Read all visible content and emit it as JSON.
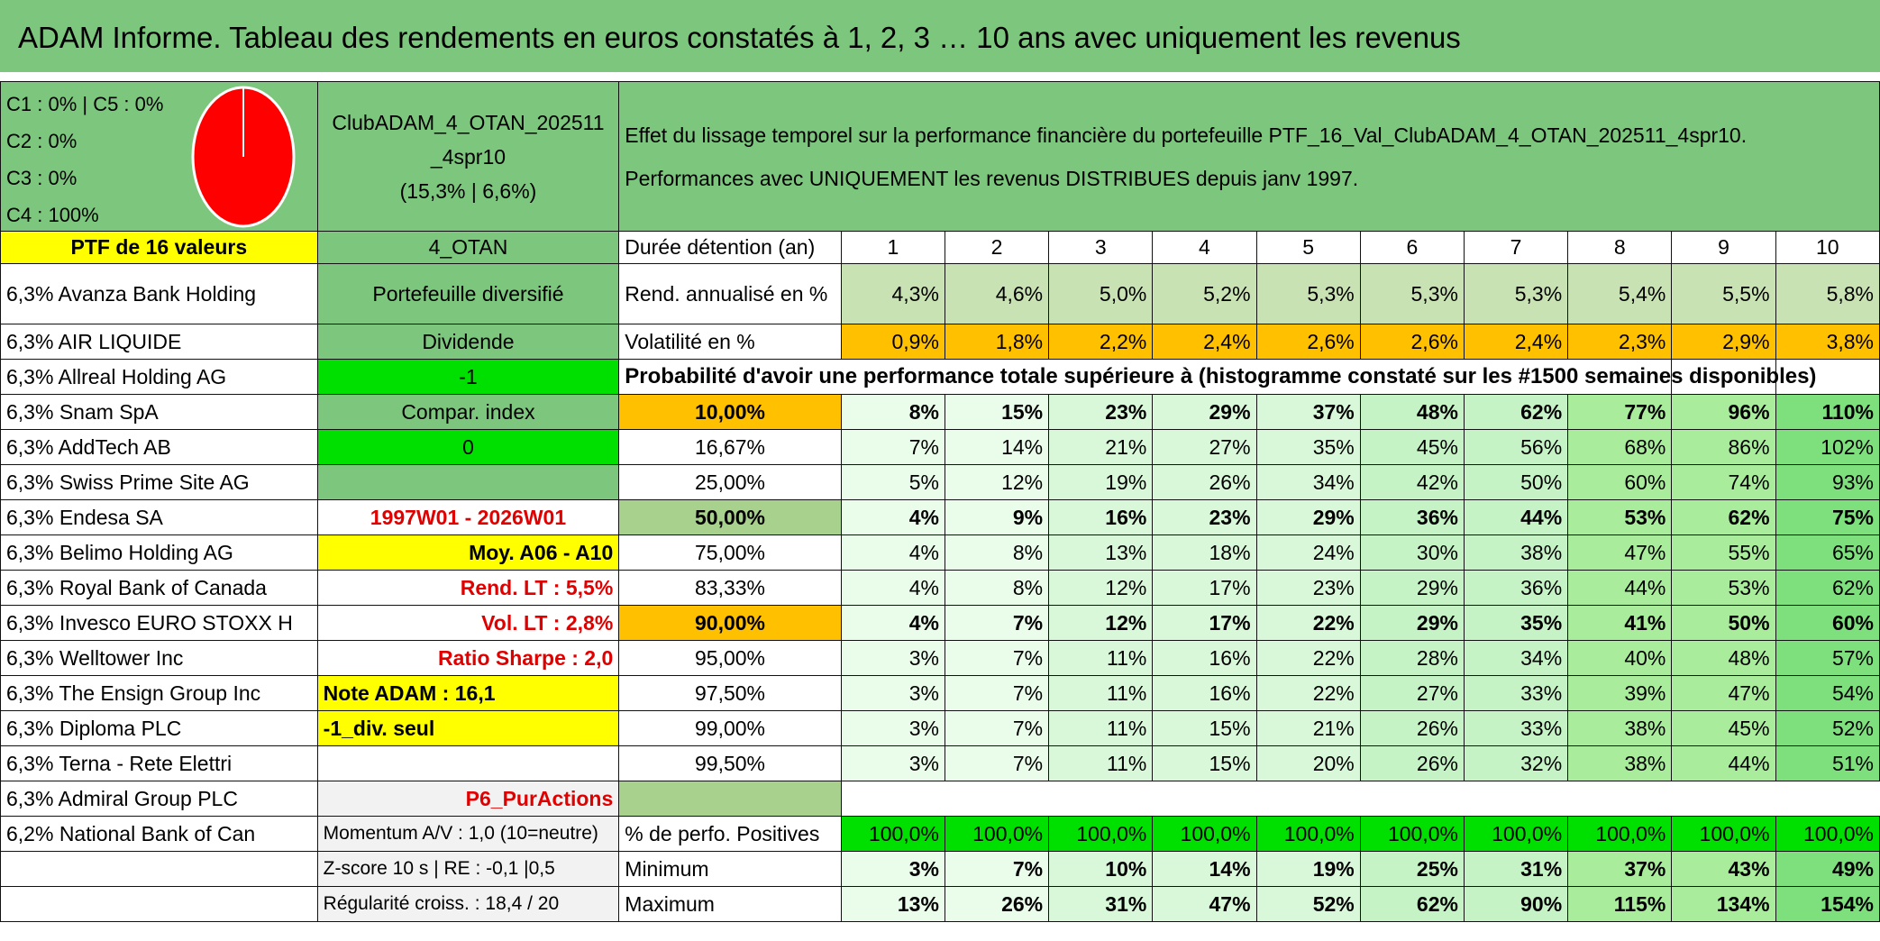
{
  "title": "ADAM Informe. Tableau des rendements en euros constatés à 1, 2, 3 … 10 ans avec uniquement les revenus",
  "legend": [
    "C1 : 0% | C5 : 0%",
    "C2 : 0%",
    "C3 : 0%",
    "C4 : 100%"
  ],
  "pie": {
    "color": "#ff0000",
    "C4_share": 1.0
  },
  "club": {
    "name_line1": "ClubADAM_4_OTAN_202511",
    "name_line2": "_4spr10",
    "stats": "(15,3% | 6,6%)"
  },
  "description": {
    "line1": "Effet du lissage temporel sur la performance financière du portefeuille PTF_16_Val_ClubADAM_4_OTAN_202511_4spr10.",
    "line2": "Performances avec UNIQUEMENT les revenus DISTRIBUES depuis janv 1997."
  },
  "portfolio_header": "PTF de 16 valeurs",
  "code": "4_OTAN",
  "duration_label": "Durée détention (an)",
  "years": [
    "1",
    "2",
    "3",
    "4",
    "5",
    "6",
    "7",
    "8",
    "9",
    "10"
  ],
  "holdings": [
    "6,3% Avanza Bank Holding",
    "6,3% AIR LIQUIDE",
    "6,3% Allreal Holding AG",
    "6,3% Snam SpA",
    "6,3% AddTech AB",
    "6,3% Swiss Prime Site AG",
    "6,3% Endesa SA",
    "6,3% Belimo Holding AG",
    "6,3% Royal Bank of Canada",
    "6,3% Invesco EURO STOXX H",
    "6,3% Welltower Inc",
    "6,3% The Ensign Group Inc",
    "6,3% Diploma PLC",
    "6,3% Terna - Rete Elettri",
    "6,3% Admiral Group PLC",
    "6,2% National Bank of Can"
  ],
  "info": {
    "portfolio_type": "Portefeuille diversifié",
    "dividend_label": "Dividende",
    "dividend_value": "-1",
    "compar_label": "Compar. index",
    "compar_value": "0",
    "period": "1997W01 - 2026W01",
    "moy": "Moy. A06 - A10",
    "rend_lt": "Rend. LT : 5,5%",
    "vol_lt": "Vol. LT : 2,8%",
    "sharpe": "Ratio Sharpe : 2,0",
    "note": "Note ADAM : 16,1",
    "div_seul": "-1_div. seul",
    "purchase": "P6_PurActions",
    "momentum": "Momentum A/V : 1,0 (10=neutre)",
    "zscore": "Z-score 10 s | RE : -0,1 |0,5",
    "regularite": "Régularité croiss. : 18,4 / 20"
  },
  "rend": {
    "label": "Rend. annualisé en %",
    "values": [
      "4,3%",
      "4,6%",
      "5,0%",
      "5,2%",
      "5,3%",
      "5,3%",
      "5,3%",
      "5,4%",
      "5,5%",
      "5,8%"
    ]
  },
  "vol": {
    "label": "Volatilité en %",
    "values": [
      "0,9%",
      "1,8%",
      "2,2%",
      "2,4%",
      "2,6%",
      "2,6%",
      "2,4%",
      "2,3%",
      "2,9%",
      "3,8%"
    ]
  },
  "prob_header": "Probabilité d'avoir une performance totale supérieure à (histogramme constaté sur les #1500 semaines disponibles)",
  "prob_rows": [
    {
      "p": "10,00%",
      "values": [
        "8%",
        "15%",
        "23%",
        "29%",
        "37%",
        "48%",
        "62%",
        "77%",
        "96%",
        "110%"
      ]
    },
    {
      "p": "16,67%",
      "values": [
        "7%",
        "14%",
        "21%",
        "27%",
        "35%",
        "45%",
        "56%",
        "68%",
        "86%",
        "102%"
      ]
    },
    {
      "p": "25,00%",
      "values": [
        "5%",
        "12%",
        "19%",
        "26%",
        "34%",
        "42%",
        "50%",
        "60%",
        "74%",
        "93%"
      ]
    },
    {
      "p": "50,00%",
      "values": [
        "4%",
        "9%",
        "16%",
        "23%",
        "29%",
        "36%",
        "44%",
        "53%",
        "62%",
        "75%"
      ]
    },
    {
      "p": "75,00%",
      "values": [
        "4%",
        "8%",
        "13%",
        "18%",
        "24%",
        "30%",
        "38%",
        "47%",
        "55%",
        "65%"
      ]
    },
    {
      "p": "83,33%",
      "values": [
        "4%",
        "8%",
        "12%",
        "17%",
        "23%",
        "29%",
        "36%",
        "44%",
        "53%",
        "62%"
      ]
    },
    {
      "p": "90,00%",
      "values": [
        "4%",
        "7%",
        "12%",
        "17%",
        "22%",
        "29%",
        "35%",
        "41%",
        "50%",
        "60%"
      ]
    },
    {
      "p": "95,00%",
      "values": [
        "3%",
        "7%",
        "11%",
        "16%",
        "22%",
        "28%",
        "34%",
        "40%",
        "48%",
        "57%"
      ]
    },
    {
      "p": "97,50%",
      "values": [
        "3%",
        "7%",
        "11%",
        "16%",
        "22%",
        "27%",
        "33%",
        "39%",
        "47%",
        "54%"
      ]
    },
    {
      "p": "99,00%",
      "values": [
        "3%",
        "7%",
        "11%",
        "15%",
        "21%",
        "26%",
        "33%",
        "38%",
        "45%",
        "52%"
      ]
    },
    {
      "p": "99,50%",
      "values": [
        "3%",
        "7%",
        "11%",
        "15%",
        "20%",
        "26%",
        "32%",
        "38%",
        "44%",
        "51%"
      ]
    }
  ],
  "positives": {
    "label": "% de perfo. Positives",
    "values": [
      "100,0%",
      "100,0%",
      "100,0%",
      "100,0%",
      "100,0%",
      "100,0%",
      "100,0%",
      "100,0%",
      "100,0%",
      "100,0%"
    ]
  },
  "minimum": {
    "label": "Minimum",
    "values": [
      "3%",
      "7%",
      "10%",
      "14%",
      "19%",
      "25%",
      "31%",
      "37%",
      "43%",
      "49%"
    ]
  },
  "maximum": {
    "label": "Maximum",
    "values": [
      "13%",
      "26%",
      "31%",
      "47%",
      "52%",
      "62%",
      "90%",
      "115%",
      "134%",
      "154%"
    ]
  }
}
